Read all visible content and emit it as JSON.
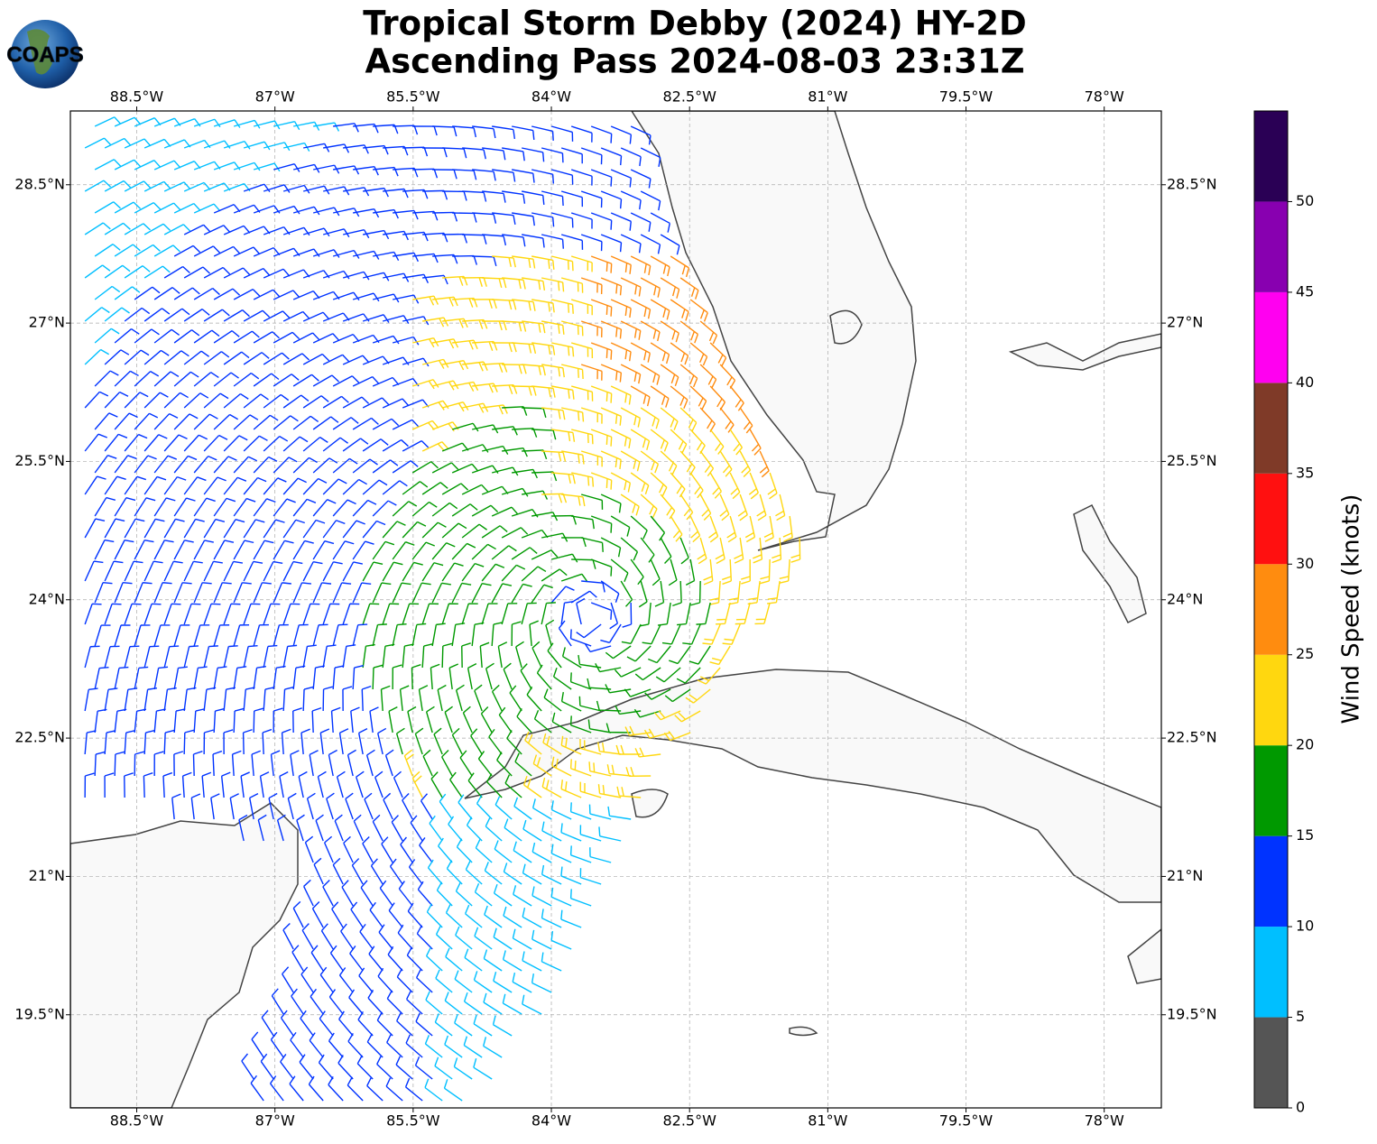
{
  "chart_data": {
    "type": "wind-barb-map",
    "title": "Tropical Storm Debby (2024) HY-2D",
    "subtitle": "Ascending Pass 2024-08-03 23:31Z",
    "logo_text": "COAPS",
    "xlim": [
      -89.22,
      -77.38
    ],
    "ylim": [
      18.49,
      29.3
    ],
    "xticks": [
      {
        "value": -88.5,
        "label": "88.5°W"
      },
      {
        "value": -87,
        "label": "87°W"
      },
      {
        "value": -85.5,
        "label": "85.5°W"
      },
      {
        "value": -84,
        "label": "84°W"
      },
      {
        "value": -82.5,
        "label": "82.5°W"
      },
      {
        "value": -81,
        "label": "81°W"
      },
      {
        "value": -79.5,
        "label": "79.5°W"
      },
      {
        "value": -78,
        "label": "78°W"
      }
    ],
    "yticks": [
      {
        "value": 19.5,
        "label": "19.5°N"
      },
      {
        "value": 21,
        "label": "21°N"
      },
      {
        "value": 22.5,
        "label": "22.5°N"
      },
      {
        "value": 24,
        "label": "24°N"
      },
      {
        "value": 25.5,
        "label": "25.5°N"
      },
      {
        "value": 27,
        "label": "27°N"
      },
      {
        "value": 28.5,
        "label": "28.5°N"
      }
    ],
    "grid": true,
    "colorbar": {
      "label": "Wind Speed (knots)",
      "lim": [
        0,
        55
      ],
      "bounds": [
        0,
        5,
        10,
        15,
        20,
        25,
        30,
        35,
        40,
        45,
        50,
        55
      ],
      "colors": [
        "#555555",
        "#00bfff",
        "#0033ff",
        "#009900",
        "#ffd70f",
        "#ff8c0f",
        "#ff1010",
        "#7f3a28",
        "#ff00f0",
        "#8800b0",
        "#2a0055"
      ],
      "ticks": [
        0,
        5,
        10,
        15,
        20,
        25,
        30,
        35,
        40,
        45,
        50
      ]
    }
  }
}
